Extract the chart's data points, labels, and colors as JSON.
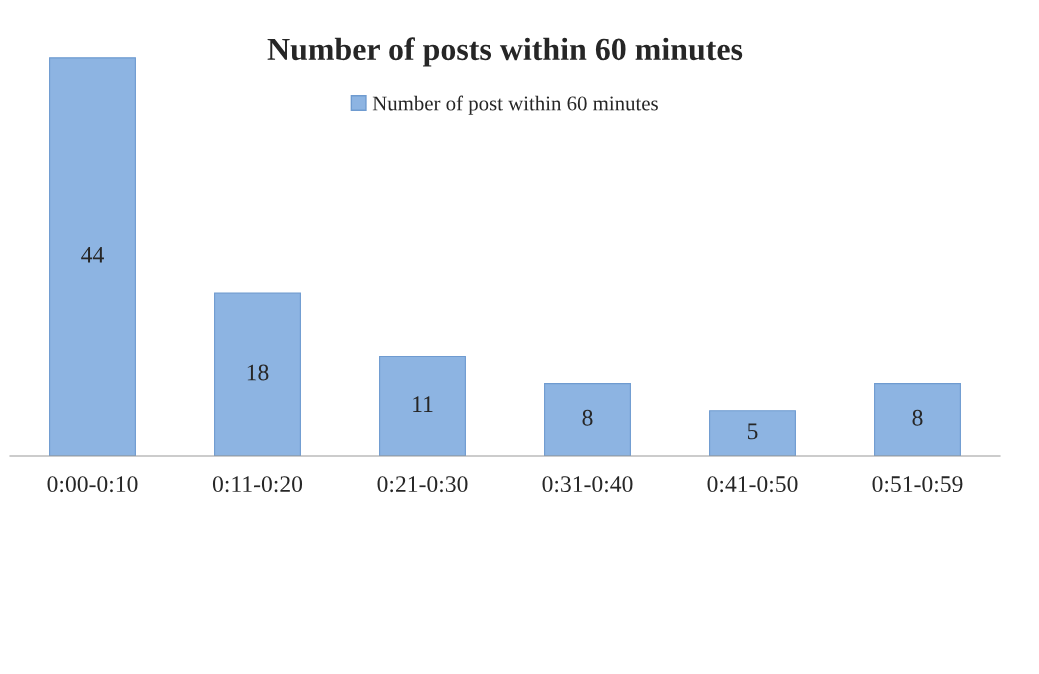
{
  "chart_data": {
    "type": "bar",
    "title": "Number of posts within 60 minutes",
    "categories": [
      "0:00-0:10",
      "0:11-0:20",
      "0:21-0:30",
      "0:31-0:40",
      "0:41-0:50",
      "0:51-0:59"
    ],
    "series": [
      {
        "name": "Number of post within 60 minutes",
        "color": "#8db4e2",
        "values": [
          44,
          18,
          11,
          8,
          5,
          8
        ]
      }
    ],
    "data_labels": true,
    "legend": "top",
    "grid": false
  }
}
